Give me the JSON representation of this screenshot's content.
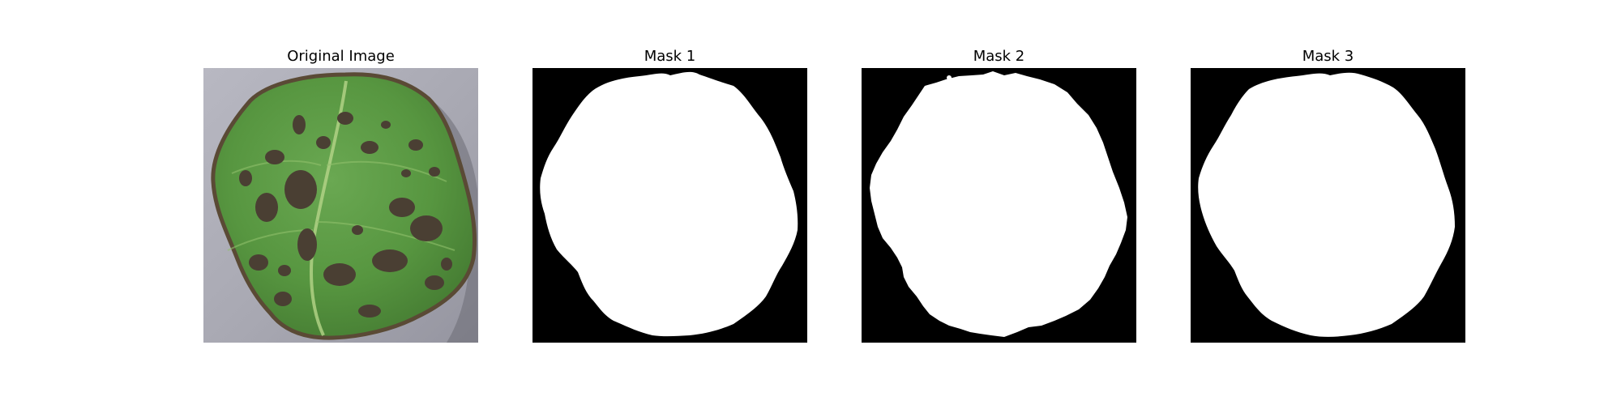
{
  "figure": {
    "panels": [
      {
        "title": "Original Image",
        "kind": "photo"
      },
      {
        "title": "Mask 1",
        "kind": "mask"
      },
      {
        "title": "Mask 2",
        "kind": "mask"
      },
      {
        "title": "Mask 3",
        "kind": "mask"
      }
    ]
  },
  "colors": {
    "mask_foreground": "#ffffff",
    "mask_background": "#000000",
    "photo_background": "#a7a7b1",
    "leaf_green": "#5a9a45",
    "leaf_dark_green": "#3f7030",
    "lesion_brown": "#4a3f33",
    "leaf_edge_brown": "#5a4a35"
  }
}
